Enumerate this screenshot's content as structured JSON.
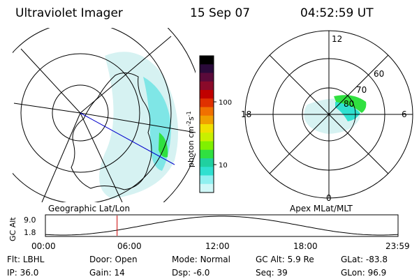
{
  "header": {
    "instrument": "Ultraviolet Imager",
    "date": "15 Sep 07",
    "time": "04:52:59 UT"
  },
  "geo_panel": {
    "label": "Geographic Lat/Lon"
  },
  "colorbar": {
    "label_main": "photon cm",
    "label_exp1": "-2",
    "label_mid": "s",
    "label_exp2": "-1",
    "ticks": [
      "100",
      "10"
    ],
    "colors": [
      "#000000",
      "#2a0a3a",
      "#5a0a3a",
      "#8a0a2a",
      "#c00000",
      "#e03000",
      "#f07000",
      "#f0a000",
      "#f0e000",
      "#c8f000",
      "#80f000",
      "#30e040",
      "#20d0a0",
      "#30e0d0",
      "#90f0f0",
      "#d0f8f8"
    ]
  },
  "polar_panel": {
    "label": "Apex MLat/MLT",
    "mlt_labels": {
      "top": "12",
      "left": "18",
      "right": "6",
      "bottom": "0"
    },
    "lat_labels": [
      "60",
      "70",
      "80"
    ]
  },
  "timeline": {
    "ylabel": "GC Alt",
    "ytick_top": "9.0",
    "ytick_bottom": "1.8",
    "xticks": [
      "00:00",
      "06:00",
      "12:00",
      "18:00",
      "23:59"
    ],
    "marker_time_hours": 4.88
  },
  "footer": {
    "row1": [
      {
        "key": "Flt:",
        "val": "LBHL"
      },
      {
        "key": "Door:",
        "val": "Open"
      },
      {
        "key": "Mode:",
        "val": "Normal"
      },
      {
        "key": "GC Alt:",
        "val": "5.9 Re"
      },
      {
        "key": "GLat:",
        "val": "-83.8"
      }
    ],
    "row2": [
      {
        "key": "IP:",
        "val": "36.0"
      },
      {
        "key": "Gain:",
        "val": "14"
      },
      {
        "key": "Dsp:",
        "val": "-6.0"
      },
      {
        "key": "Seq:",
        "val": "39"
      },
      {
        "key": "GLon:",
        "val": "96.9"
      }
    ]
  },
  "colors": {
    "aurora_pale": "#d6f2f2",
    "aurora_cyan": "#30e0d0",
    "aurora_green": "#30e040",
    "marker": "#cc0000",
    "blue_line": "#0000cc"
  }
}
